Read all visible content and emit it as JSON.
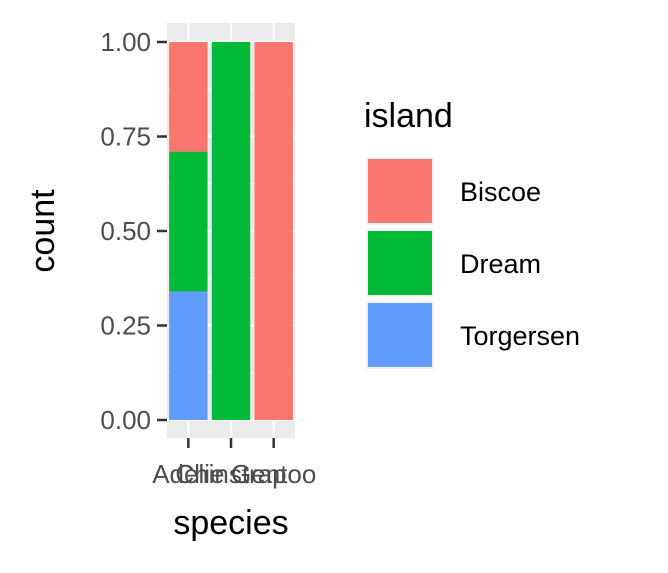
{
  "chart_data": {
    "type": "bar",
    "stacked": true,
    "position": "fill",
    "categories": [
      "Adelie",
      "Chinstrap",
      "Gentoo"
    ],
    "series": [
      {
        "name": "Biscoe",
        "color": "#F8766D",
        "values": [
          0.29,
          0.0,
          1.0
        ]
      },
      {
        "name": "Dream",
        "color": "#00BA38",
        "values": [
          0.37,
          1.0,
          0.0
        ]
      },
      {
        "name": "Torgersen",
        "color": "#619CFF",
        "values": [
          0.34,
          0.0,
          0.0
        ]
      }
    ],
    "stack_order_bottom_to_top": [
      "Torgersen",
      "Dream",
      "Biscoe"
    ],
    "xlabel": "species",
    "ylabel": "count",
    "ylim": [
      0,
      1
    ],
    "y_ticks": [
      0,
      0.25,
      0.5,
      0.75,
      1
    ],
    "y_tick_labels": [
      "0.00",
      "0.25",
      "0.50",
      "0.75",
      "1.00"
    ],
    "legend": {
      "title": "island",
      "placement": "right"
    },
    "panel_background": "#EBEBEB",
    "grid": true
  }
}
